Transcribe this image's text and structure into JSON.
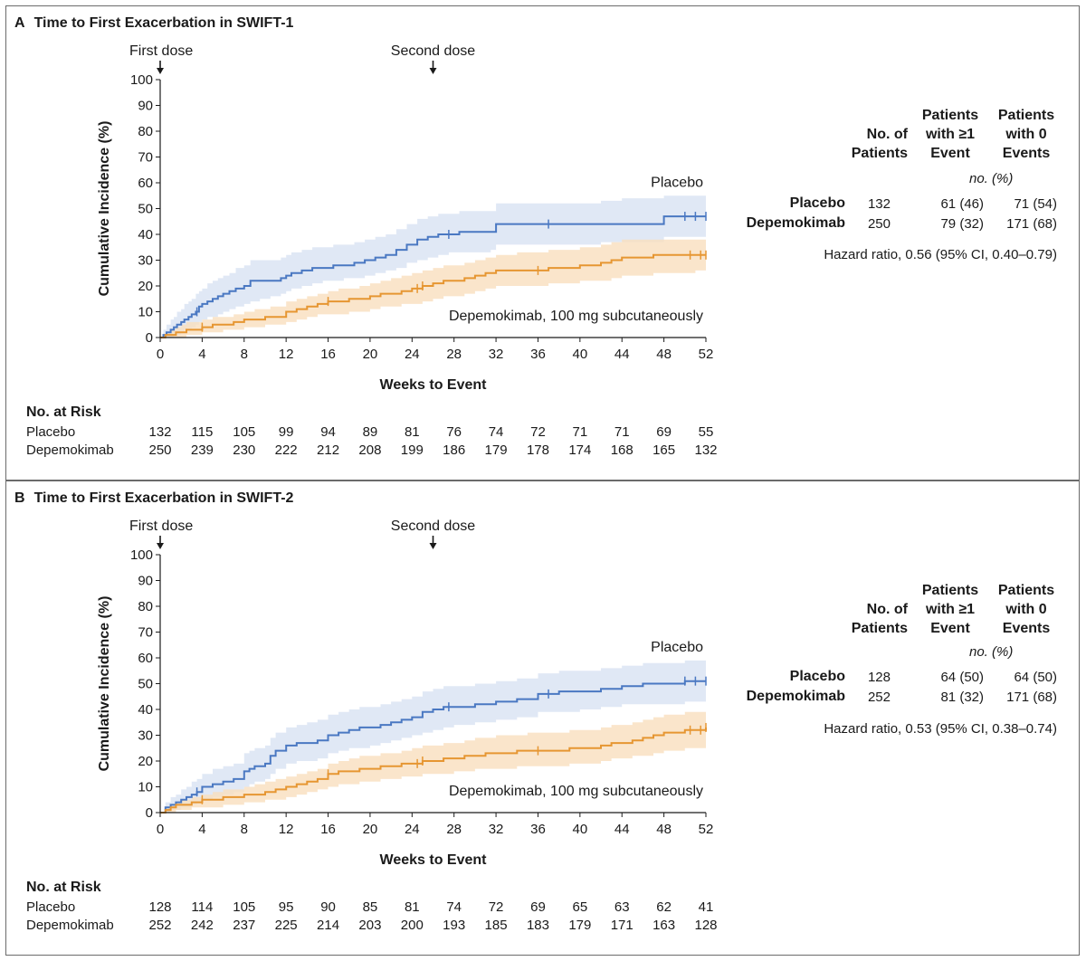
{
  "chart_data": [
    {
      "type": "line",
      "panel_letter": "A",
      "title": "Time to First Exacerbation in SWIFT-1",
      "xlabel": "Weeks to Event",
      "ylabel": "Cumulative Incidence (%)",
      "xlim": [
        0,
        52
      ],
      "ylim": [
        0,
        100
      ],
      "x_ticks": [
        0,
        4,
        8,
        12,
        16,
        20,
        24,
        28,
        32,
        36,
        40,
        44,
        48,
        52
      ],
      "y_ticks": [
        0,
        10,
        20,
        30,
        40,
        50,
        60,
        70,
        80,
        90,
        100
      ],
      "annotations": [
        {
          "text": "First dose",
          "x": 0
        },
        {
          "text": "Second dose",
          "x": 26
        }
      ],
      "colors": {
        "placebo": "#4a78c2",
        "placebo_band": "#dbe4f3",
        "depemokimab": "#e69632",
        "depemokimab_band": "#f9dfbe"
      },
      "series": [
        {
          "name": "Placebo",
          "label": "Placebo",
          "x": [
            0,
            0.3,
            0.6,
            1,
            1.3,
            1.6,
            2,
            2.3,
            2.7,
            3,
            3.4,
            3.7,
            4,
            4.5,
            5,
            5.5,
            6,
            6.6,
            7.2,
            8,
            8.6,
            9.5,
            10.5,
            11.5,
            12,
            12.5,
            13.5,
            14.5,
            15.5,
            16.5,
            17.5,
            18.5,
            19.5,
            20.5,
            21.5,
            22.5,
            23.5,
            24.5,
            25.5,
            26.5,
            27.5,
            28.5,
            30,
            31.5,
            32,
            33,
            35,
            38,
            40,
            42,
            44,
            46,
            48,
            50,
            52
          ],
          "values": [
            0,
            1,
            2,
            3,
            4,
            5,
            6,
            7,
            8,
            9,
            10,
            12,
            13,
            14,
            15,
            16,
            17,
            18,
            19,
            20,
            22,
            22,
            22,
            23,
            24,
            25,
            26,
            27,
            27,
            28,
            28,
            29,
            30,
            31,
            32,
            34,
            36,
            38,
            39,
            40,
            40,
            41,
            41,
            41,
            44,
            44,
            44,
            44,
            44,
            44,
            44,
            44,
            47,
            47,
            47
          ],
          "ci_low": [
            0,
            0,
            0,
            0,
            1,
            1,
            2,
            3,
            3,
            4,
            5,
            6,
            7,
            8,
            8,
            9,
            10,
            11,
            12,
            13,
            14,
            15,
            16,
            17,
            18,
            19,
            20,
            21,
            22,
            22,
            23,
            23,
            24,
            25,
            26,
            27,
            29,
            30,
            31,
            32,
            33,
            33,
            33,
            34,
            36,
            36,
            36,
            36,
            36,
            37,
            37,
            37,
            39,
            39,
            39
          ],
          "ci_high": [
            0,
            3,
            5,
            7,
            8,
            10,
            11,
            13,
            14,
            15,
            17,
            18,
            19,
            21,
            22,
            23,
            24,
            25,
            27,
            28,
            30,
            30,
            30,
            31,
            32,
            33,
            34,
            35,
            35,
            36,
            36,
            37,
            38,
            39,
            40,
            42,
            44,
            46,
            47,
            48,
            48,
            49,
            49,
            49,
            52,
            52,
            52,
            52,
            52,
            53,
            54,
            54,
            55,
            55,
            55
          ]
        },
        {
          "name": "Depemokimab",
          "label": "Depemokimab, 100 mg subcutaneously",
          "x": [
            0,
            0.5,
            1,
            1.5,
            2,
            2.5,
            3,
            4,
            5,
            6,
            7,
            8,
            9,
            10,
            10.5,
            11,
            12,
            13,
            14,
            15,
            16,
            17,
            18,
            19,
            20,
            21,
            22,
            23,
            24,
            25,
            26,
            27,
            28,
            29,
            30,
            31,
            32,
            33,
            34,
            35,
            36,
            37,
            38,
            39,
            40,
            41,
            42,
            43,
            44,
            45,
            46,
            47,
            48,
            49,
            50,
            51,
            52
          ],
          "values": [
            0,
            1,
            1,
            2,
            2,
            3,
            3,
            4,
            5,
            5,
            6,
            7,
            7,
            8,
            8,
            8,
            10,
            11,
            12,
            13,
            14,
            14,
            15,
            15,
            16,
            17,
            17,
            18,
            19,
            20,
            21,
            22,
            22,
            23,
            24,
            25,
            26,
            26,
            26,
            26,
            26,
            27,
            27,
            27,
            28,
            28,
            29,
            30,
            31,
            31,
            31,
            32,
            32,
            32,
            32,
            32,
            32
          ],
          "ci_low": [
            0,
            0,
            0,
            0,
            0,
            1,
            1,
            2,
            2,
            3,
            3,
            4,
            4,
            5,
            5,
            5,
            6,
            7,
            8,
            9,
            9,
            9,
            10,
            10,
            11,
            12,
            12,
            13,
            13,
            14,
            15,
            16,
            16,
            17,
            18,
            19,
            20,
            20,
            20,
            20,
            20,
            21,
            21,
            21,
            22,
            22,
            22,
            23,
            24,
            24,
            24,
            25,
            25,
            25,
            25,
            26,
            26
          ],
          "ci_high": [
            0,
            2,
            3,
            4,
            5,
            6,
            6,
            7,
            8,
            8,
            9,
            10,
            11,
            11,
            12,
            12,
            14,
            15,
            16,
            17,
            18,
            19,
            19,
            20,
            21,
            22,
            23,
            24,
            25,
            26,
            27,
            28,
            28,
            29,
            30,
            31,
            32,
            32,
            33,
            33,
            33,
            34,
            34,
            34,
            35,
            35,
            36,
            37,
            38,
            38,
            38,
            38,
            38,
            38,
            38,
            38,
            38
          ]
        }
      ],
      "risk_table": {
        "title": "No. at Risk",
        "rows": [
          {
            "label": "Placebo",
            "values": [
              "132",
              "115",
              "105",
              "99",
              "94",
              "89",
              "81",
              "76",
              "74",
              "72",
              "71",
              "71",
              "69",
              "55"
            ]
          },
          {
            "label": "Depemokimab",
            "values": [
              "250",
              "239",
              "230",
              "222",
              "212",
              "208",
              "199",
              "186",
              "179",
              "178",
              "174",
              "168",
              "165",
              "132"
            ]
          }
        ]
      },
      "summary_table": {
        "headers": [
          "No. of\nPatients",
          "Patients\nwith ≥1\nEvent",
          "Patients\nwith 0\nEvents"
        ],
        "units": "no. (%)",
        "rows": [
          {
            "label": "Placebo",
            "n": "132",
            "ge1": "61 (46)",
            "zero": "71 (54)"
          },
          {
            "label": "Depemokimab",
            "n": "250",
            "ge1": "79 (32)",
            "zero": "171 (68)"
          }
        ],
        "hazard_ratio": "Hazard ratio, 0.56 (95% CI, 0.40–0.79)"
      }
    },
    {
      "type": "line",
      "panel_letter": "B",
      "title": "Time to First Exacerbation in SWIFT-2",
      "xlabel": "Weeks to Event",
      "ylabel": "Cumulative Incidence (%)",
      "xlim": [
        0,
        52
      ],
      "ylim": [
        0,
        100
      ],
      "x_ticks": [
        0,
        4,
        8,
        12,
        16,
        20,
        24,
        28,
        32,
        36,
        40,
        44,
        48,
        52
      ],
      "y_ticks": [
        0,
        10,
        20,
        30,
        40,
        50,
        60,
        70,
        80,
        90,
        100
      ],
      "annotations": [
        {
          "text": "First dose",
          "x": 0
        },
        {
          "text": "Second dose",
          "x": 26
        }
      ],
      "colors": {
        "placebo": "#4a78c2",
        "placebo_band": "#dbe4f3",
        "depemokimab": "#e69632",
        "depemokimab_band": "#f9dfbe"
      },
      "series": [
        {
          "name": "Placebo",
          "label": "Placebo",
          "x": [
            0,
            0.5,
            1,
            1.5,
            2,
            2.5,
            3,
            3.5,
            4,
            5,
            6,
            7,
            8,
            8.5,
            9,
            10,
            10.5,
            11,
            12,
            13,
            14,
            15,
            16,
            17,
            18,
            19,
            20,
            21,
            22,
            23,
            24,
            25,
            26,
            27,
            28,
            30,
            32,
            34,
            36,
            38,
            40,
            42,
            44,
            46,
            48,
            50,
            52
          ],
          "values": [
            0,
            2,
            3,
            4,
            5,
            6,
            7,
            8,
            10,
            11,
            12,
            13,
            16,
            17,
            18,
            19,
            22,
            24,
            26,
            27,
            27,
            28,
            30,
            31,
            32,
            33,
            33,
            34,
            35,
            36,
            37,
            39,
            40,
            41,
            41,
            42,
            43,
            44,
            46,
            47,
            47,
            48,
            49,
            50,
            50,
            51,
            51
          ],
          "ci_low": [
            0,
            0,
            1,
            1,
            2,
            2,
            3,
            4,
            5,
            6,
            7,
            8,
            10,
            11,
            12,
            13,
            15,
            17,
            19,
            20,
            20,
            21,
            23,
            24,
            25,
            25,
            26,
            27,
            28,
            29,
            30,
            31,
            32,
            33,
            34,
            35,
            36,
            37,
            39,
            39,
            40,
            41,
            42,
            42,
            42,
            43,
            43
          ],
          "ci_high": [
            0,
            4,
            6,
            7,
            9,
            10,
            12,
            13,
            15,
            17,
            18,
            19,
            23,
            24,
            25,
            26,
            29,
            31,
            33,
            34,
            35,
            36,
            38,
            39,
            40,
            41,
            41,
            42,
            43,
            44,
            45,
            47,
            48,
            49,
            49,
            50,
            51,
            52,
            54,
            55,
            55,
            56,
            57,
            58,
            58,
            59,
            59
          ]
        },
        {
          "name": "Depemokimab",
          "label": "Depemokimab, 100 mg subcutaneously",
          "x": [
            0,
            0.5,
            1,
            1.5,
            2,
            3,
            4,
            5,
            6,
            7,
            8,
            9,
            10,
            11,
            12,
            13,
            14,
            15,
            16,
            17,
            18,
            19,
            20,
            21,
            22,
            23,
            24,
            25,
            26,
            27,
            28,
            29,
            30,
            31,
            32,
            33,
            34,
            35,
            36,
            37,
            38,
            39,
            40,
            41,
            42,
            43,
            44,
            45,
            46,
            47,
            48,
            49,
            50,
            51,
            52
          ],
          "values": [
            0,
            1,
            2,
            3,
            3,
            4,
            5,
            5,
            6,
            6,
            7,
            7,
            8,
            9,
            10,
            11,
            12,
            13,
            15,
            16,
            16,
            17,
            17,
            18,
            18,
            19,
            19,
            20,
            20,
            21,
            21,
            22,
            22,
            23,
            23,
            23,
            24,
            24,
            24,
            24,
            24,
            25,
            25,
            25,
            26,
            27,
            27,
            28,
            29,
            30,
            31,
            31,
            32,
            32,
            33
          ],
          "ci_low": [
            0,
            0,
            0,
            1,
            1,
            2,
            2,
            2,
            3,
            3,
            4,
            4,
            5,
            5,
            6,
            7,
            8,
            9,
            10,
            11,
            11,
            12,
            12,
            13,
            13,
            14,
            14,
            15,
            15,
            15,
            16,
            16,
            17,
            17,
            17,
            17,
            18,
            18,
            18,
            18,
            18,
            19,
            19,
            19,
            20,
            21,
            21,
            22,
            22,
            23,
            24,
            24,
            25,
            25,
            26
          ],
          "ci_high": [
            0,
            2,
            3,
            4,
            5,
            6,
            7,
            8,
            9,
            9,
            10,
            11,
            12,
            13,
            14,
            15,
            16,
            17,
            19,
            20,
            21,
            22,
            22,
            23,
            23,
            24,
            25,
            26,
            26,
            27,
            27,
            28,
            29,
            29,
            30,
            30,
            30,
            31,
            31,
            31,
            31,
            32,
            32,
            32,
            33,
            34,
            34,
            35,
            36,
            37,
            38,
            38,
            39,
            39,
            39
          ]
        }
      ],
      "risk_table": {
        "title": "No. at Risk",
        "rows": [
          {
            "label": "Placebo",
            "values": [
              "128",
              "114",
              "105",
              "95",
              "90",
              "85",
              "81",
              "74",
              "72",
              "69",
              "65",
              "63",
              "62",
              "41"
            ]
          },
          {
            "label": "Depemokimab",
            "values": [
              "252",
              "242",
              "237",
              "225",
              "214",
              "203",
              "200",
              "193",
              "185",
              "183",
              "179",
              "171",
              "163",
              "128"
            ]
          }
        ]
      },
      "summary_table": {
        "headers": [
          "No. of\nPatients",
          "Patients\nwith ≥1\nEvent",
          "Patients\nwith 0\nEvents"
        ],
        "units": "no. (%)",
        "rows": [
          {
            "label": "Placebo",
            "n": "128",
            "ge1": "64 (50)",
            "zero": "64 (50)"
          },
          {
            "label": "Depemokimab",
            "n": "252",
            "ge1": "81 (32)",
            "zero": "171 (68)"
          }
        ],
        "hazard_ratio": "Hazard ratio, 0.53 (95% CI, 0.38–0.74)"
      }
    }
  ]
}
